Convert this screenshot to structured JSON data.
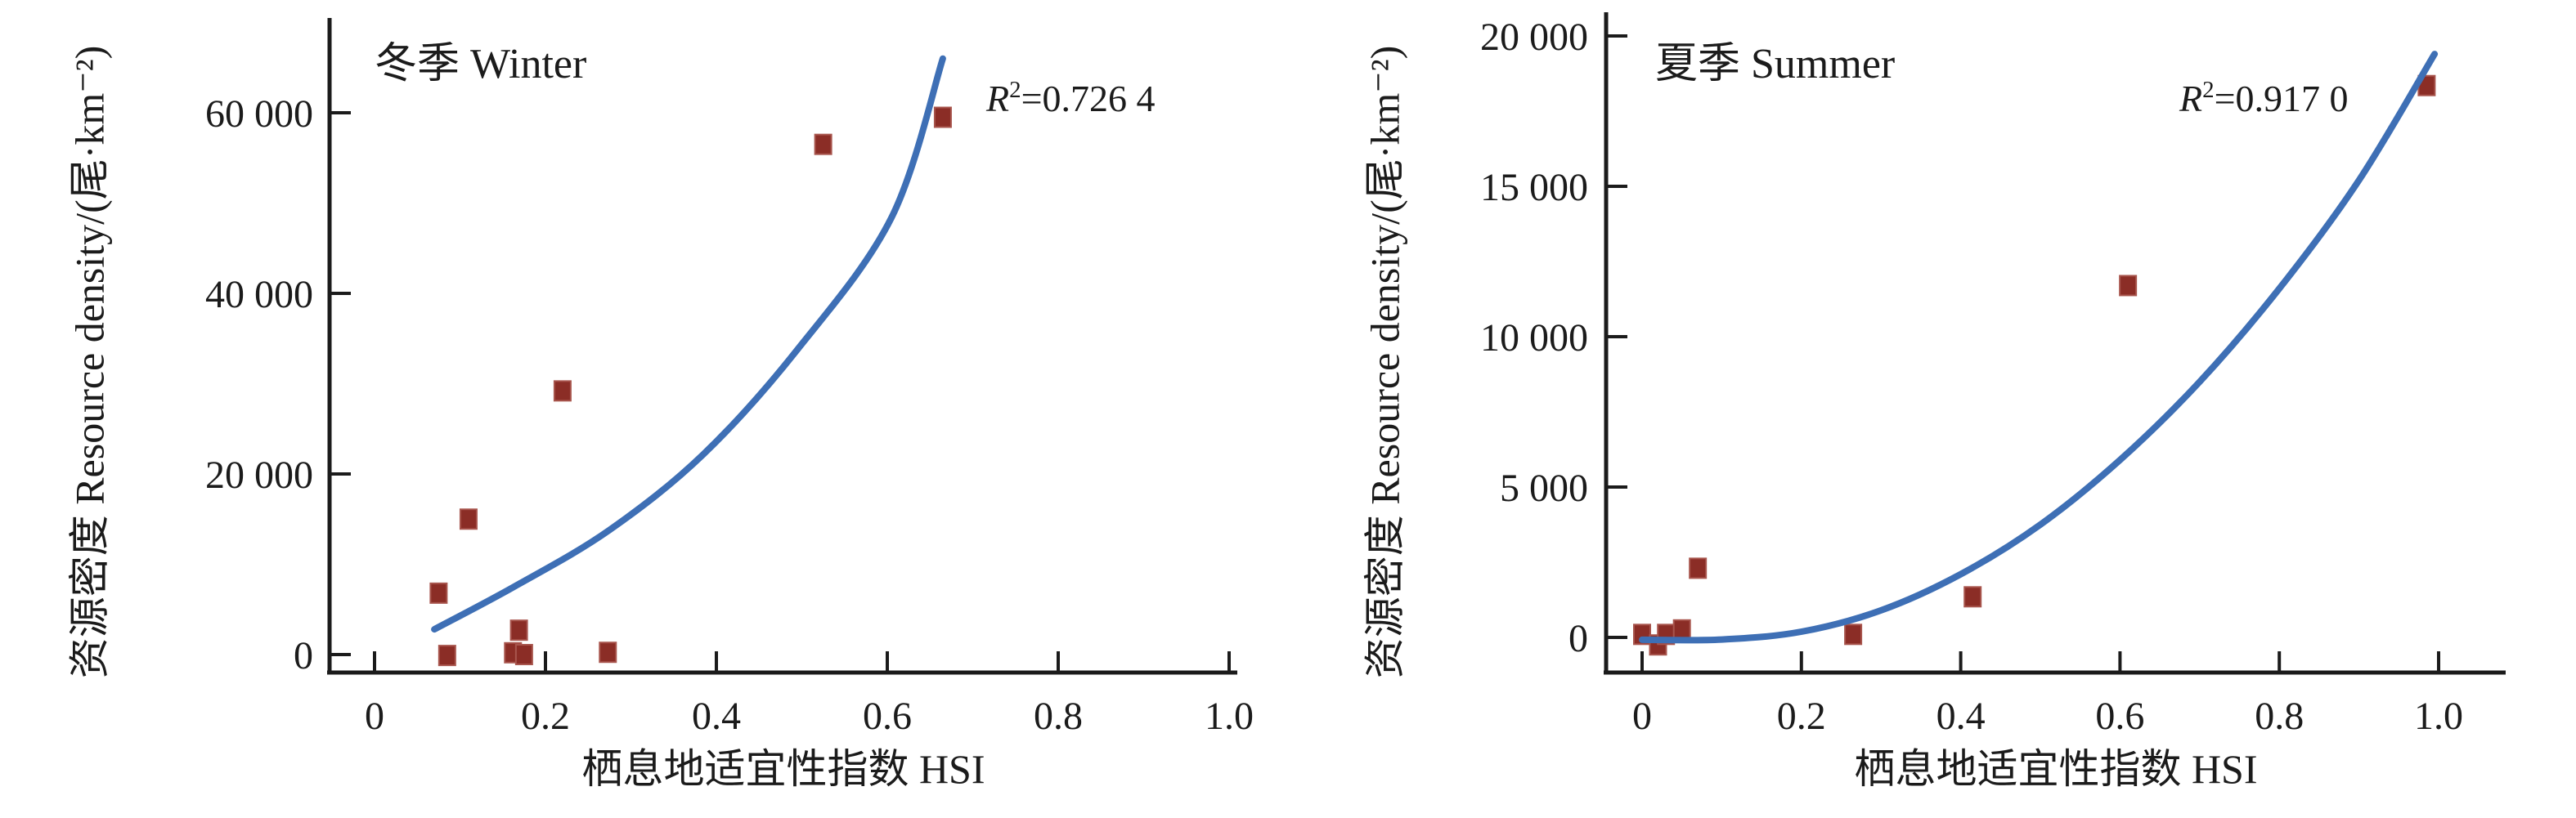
{
  "figure": {
    "background": "#ffffff",
    "description_visible_panels": 2
  },
  "chart_data": [
    {
      "id": "winter",
      "type": "scatter",
      "title": "冬季 Winter",
      "r2": {
        "sym": "R",
        "exp": "2",
        "rest": "=0.726 4"
      },
      "xlabel": "栖息地适宜性指数 HSI",
      "ylabel": "资源密度 Resource density/(尾·km⁻²)",
      "xlim": [
        0,
        1.0
      ],
      "ylim": [
        0,
        66000
      ],
      "grid": false,
      "legend": null,
      "x_ticks": {
        "values": [
          0,
          0.2,
          0.4,
          0.6,
          0.8,
          1.0
        ],
        "labels": [
          "0",
          "0.2",
          "0.4",
          "0.6",
          "0.8",
          "1.0"
        ]
      },
      "y_ticks": {
        "values": [
          0,
          20000,
          40000,
          60000
        ],
        "labels": [
          "0",
          "20 000",
          "40 000",
          "60 000"
        ]
      },
      "points": [
        [
          0.075,
          6800
        ],
        [
          0.085,
          -100
        ],
        [
          0.11,
          15000
        ],
        [
          0.162,
          200
        ],
        [
          0.169,
          2700
        ],
        [
          0.175,
          0
        ],
        [
          0.22,
          29200
        ],
        [
          0.273,
          250
        ],
        [
          0.525,
          56500
        ],
        [
          0.665,
          59500
        ]
      ],
      "trend_line": [
        [
          0.07,
          2800
        ],
        [
          0.165,
          7600
        ],
        [
          0.275,
          13800
        ],
        [
          0.385,
          22200
        ],
        [
          0.495,
          33800
        ],
        [
          0.605,
          48400
        ],
        [
          0.665,
          66000
        ]
      ],
      "colors": {
        "marker": "#8B2D26",
        "marker_edge": "#A8554D",
        "trend": "#3E6FB5",
        "axis": "#1B1B1B",
        "text": "#1B1B1B"
      }
    },
    {
      "id": "summer",
      "type": "scatter",
      "title": "夏季 Summer",
      "r2": {
        "sym": "R",
        "exp": "2",
        "rest": "=0.917 0"
      },
      "xlabel": "栖息地适宜性指数 HSI",
      "ylabel": "资源密度 Resource density/(尾·km⁻²)",
      "xlim": [
        0,
        1.0
      ],
      "ylim": [
        0,
        20000
      ],
      "grid": false,
      "legend": null,
      "x_ticks": {
        "values": [
          0,
          0.2,
          0.4,
          0.6,
          0.8,
          1.0
        ],
        "labels": [
          "0",
          "0.2",
          "0.4",
          "0.6",
          "0.8",
          "1.0"
        ]
      },
      "y_ticks": {
        "values": [
          0,
          5000,
          10000,
          15000,
          20000
        ],
        "labels": [
          "0",
          "5 000",
          "10 000",
          "15 000",
          "20 000"
        ]
      },
      "points": [
        [
          0.0,
          100
        ],
        [
          0.02,
          -250
        ],
        [
          0.03,
          100
        ],
        [
          0.05,
          250
        ],
        [
          0.07,
          2300
        ],
        [
          0.265,
          100
        ],
        [
          0.415,
          1350
        ],
        [
          0.61,
          11700
        ],
        [
          0.985,
          18350
        ]
      ],
      "trend_line": [
        [
          0.0,
          -80
        ],
        [
          0.1,
          -70
        ],
        [
          0.2,
          190
        ],
        [
          0.3,
          900
        ],
        [
          0.4,
          2100
        ],
        [
          0.5,
          3750
        ],
        [
          0.6,
          5900
        ],
        [
          0.7,
          8500
        ],
        [
          0.8,
          11600
        ],
        [
          0.9,
          15200
        ],
        [
          0.995,
          19400
        ]
      ],
      "colors": {
        "marker": "#8B2D26",
        "marker_edge": "#A8554D",
        "trend": "#3E6FB5",
        "axis": "#1B1B1B",
        "text": "#1B1B1B"
      }
    }
  ]
}
